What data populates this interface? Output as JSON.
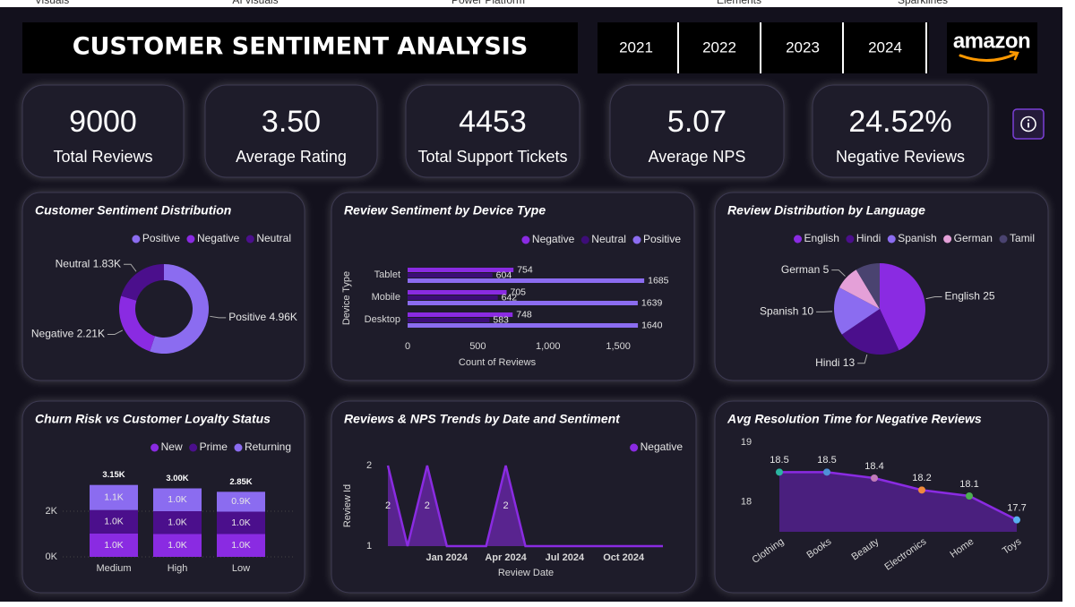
{
  "top_tabs": [
    "Visuals",
    "AI visuals",
    "Power Platform",
    "Elements",
    "Sparklines"
  ],
  "header": {
    "title": "CUSTOMER SENTIMENT ANALYSIS",
    "years": [
      "2021",
      "2022",
      "2023",
      "2024"
    ],
    "logo": "amazon"
  },
  "kpis": [
    {
      "value": "9000",
      "label": "Total Reviews"
    },
    {
      "value": "3.50",
      "label": "Average Rating"
    },
    {
      "value": "4453",
      "label": "Total Support Tickets"
    },
    {
      "value": "5.07",
      "label": "Average NPS"
    },
    {
      "value": "24.52%",
      "label": "Negative Reviews"
    }
  ],
  "chart_data": [
    {
      "type": "donut",
      "title": "Customer Sentiment Distribution",
      "categories": [
        "Positive",
        "Negative",
        "Neutral"
      ],
      "values": [
        4960,
        2210,
        1830
      ],
      "value_labels": [
        "Positive 4.96K",
        "Negative 2.21K",
        "Neutral 1.83K"
      ],
      "colors": [
        "#8b6cf0",
        "#8a2be2",
        "#4b0f8c"
      ],
      "legend": "top-right"
    },
    {
      "type": "hbar",
      "title": "Review Sentiment by Device Type",
      "categories": [
        "Tablet",
        "Mobile",
        "Desktop"
      ],
      "series": [
        {
          "name": "Negative",
          "color": "#8a2be2",
          "values": [
            754,
            705,
            748
          ]
        },
        {
          "name": "Neutral",
          "color": "#3d0d78",
          "values": [
            604,
            642,
            583
          ]
        },
        {
          "name": "Positive",
          "color": "#8b6cf0",
          "values": [
            1685,
            1639,
            1640
          ]
        }
      ],
      "xlim": [
        0,
        1850
      ],
      "xticks": [
        0,
        500,
        {
          "value": 1000,
          "label": "1,000"
        },
        {
          "value": 1500,
          "label": "1,500"
        }
      ],
      "xlabel": "Count of Reviews",
      "ylabel": "Device Type",
      "legend": "top-right"
    },
    {
      "type": "pie",
      "title": "Review Distribution by Language",
      "categories": [
        "English",
        "Hindi",
        "Spanish",
        "German",
        "Tamil"
      ],
      "values": [
        25,
        13,
        10,
        5,
        5
      ],
      "value_labels": [
        "English 25",
        "Hindi 13",
        "Spanish 10",
        "German 5",
        null
      ],
      "colors": [
        "#8a2be2",
        "#4b0f8c",
        "#8b6cf0",
        "#e4a0d8",
        "#4a4370"
      ],
      "legend": "top-right"
    },
    {
      "type": "stacked-bar",
      "title": "Churn Risk vs Customer Loyalty Status",
      "categories": [
        "Medium",
        "High",
        "Low"
      ],
      "series": [
        {
          "name": "New",
          "color": "#8a2be2",
          "values": [
            1020,
            1000,
            1000
          ],
          "value_labels": [
            "1.0K",
            "1.0K",
            "1.0K"
          ]
        },
        {
          "name": "Prime",
          "color": "#4b0f8c",
          "values": [
            1030,
            1000,
            980
          ],
          "value_labels": [
            "1.0K",
            "1.0K",
            "1.0K"
          ]
        },
        {
          "name": "Returning",
          "color": "#8b6cf0",
          "values": [
            1100,
            1000,
            870
          ],
          "value_labels": [
            "1.1K",
            "1.0K",
            "0.9K"
          ]
        }
      ],
      "total_labels": [
        "3.15K",
        "3.00K",
        "2.85K"
      ],
      "ylim": [
        0,
        4000
      ],
      "yticks": [
        {
          "value": 0,
          "label": "0K"
        },
        {
          "value": 2000,
          "label": "2K"
        }
      ],
      "grid": true,
      "legend": "top-right"
    },
    {
      "type": "area",
      "title": "Reviews & NPS Trends by Date and Sentiment",
      "x": [
        "2023-10",
        "2023-11",
        "2023-12",
        "2024-01",
        "2024-02",
        "2024-03",
        "2024-04",
        "2024-05",
        "2024-06",
        "2024-07",
        "2024-08",
        "2024-09",
        "2024-10",
        "2024-11",
        "2024-12"
      ],
      "series": [
        {
          "name": "Negative",
          "color": "#8a2be2",
          "values": [
            2,
            1,
            2,
            1,
            1,
            1,
            2,
            1,
            1,
            1,
            1,
            1,
            1,
            1,
            1
          ]
        }
      ],
      "xlim": [
        "2023-10",
        "2024-12"
      ],
      "xticks": [
        {
          "value": "2024-01",
          "label": "Jan 2024"
        },
        {
          "value": "2024-04",
          "label": "Apr 2024"
        },
        {
          "value": "2024-07",
          "label": "Jul 2024"
        },
        {
          "value": "2024-10",
          "label": "Oct 2024"
        }
      ],
      "ylim": [
        1,
        2
      ],
      "yticks": [
        1,
        2
      ],
      "xlabel": "Review Date",
      "ylabel": "Review Id",
      "legend": "top-right"
    },
    {
      "type": "line-area",
      "title": "Avg Resolution Time for Negative Reviews",
      "categories": [
        "Clothing",
        "Books",
        "Beauty",
        "Electronics",
        "Home",
        "Toys"
      ],
      "values": [
        18.5,
        18.5,
        18.4,
        18.2,
        18.1,
        17.7
      ],
      "color": "#8a2be2",
      "point_colors": [
        "#2bb5a0",
        "#4f8fd8",
        "#c07ab8",
        "#f08a3c",
        "#4caf50",
        "#59b0f0"
      ],
      "ylim": [
        17.5,
        19
      ],
      "yticks": [
        18,
        19
      ]
    }
  ]
}
